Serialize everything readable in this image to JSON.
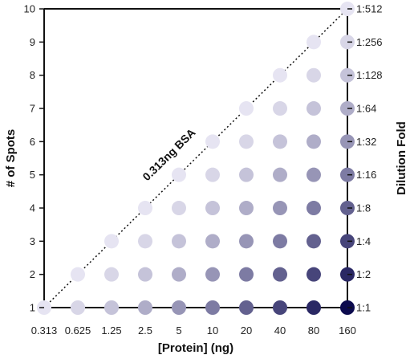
{
  "chart_data": {
    "type": "scatter",
    "title": "",
    "xlabel": "[Protein] (ng)",
    "ylabel": "# of Spots",
    "y2label": "Dilution Fold",
    "x_ticks": [
      "0.313",
      "0.625",
      "1.25",
      "2.5",
      "5",
      "10",
      "20",
      "40",
      "80",
      "160"
    ],
    "y_ticks": [
      "1",
      "2",
      "3",
      "4",
      "5",
      "6",
      "7",
      "8",
      "9",
      "10"
    ],
    "y2_ticks": [
      "1:1",
      "1:2",
      "1:4",
      "1:8",
      "1:16",
      "1:32",
      "1:64",
      "1:128",
      "1:256",
      "1:512"
    ],
    "ylim": [
      1,
      10
    ],
    "grid": false,
    "annotation": "0.313ng BSA",
    "description_rule": "Spot at x-index i (0-based) and row r (1..10) is present when r <= i+1; protein per spot = x value / 2^(r-1)",
    "color_scale": {
      "low": "#e6e4f2",
      "high": "#0c0a4e"
    }
  }
}
